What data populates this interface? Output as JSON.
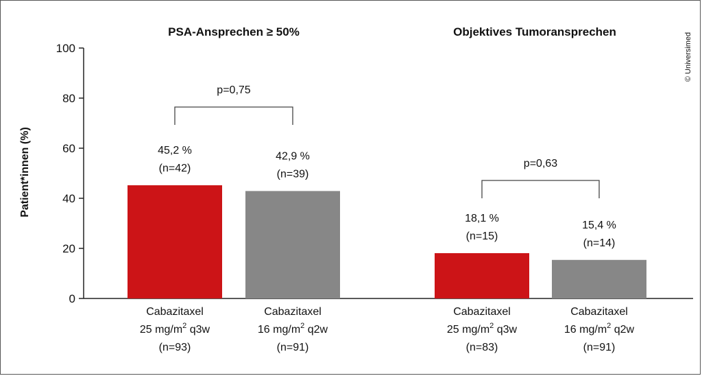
{
  "chart_data": {
    "type": "bar",
    "ylabel": "Patient*innen (%)",
    "ylim": [
      0,
      100
    ],
    "yticks": [
      0,
      20,
      40,
      60,
      80,
      100
    ],
    "grid": false,
    "copyright": "© Universimed",
    "panels": [
      {
        "title": "PSA-Ansprechen ≥ 50%",
        "p_value": "p=0,75",
        "bars": [
          {
            "value": 45.2,
            "color": "#cc1417",
            "value_label": "45,2 %",
            "n_label": "(n=42)",
            "category": {
              "line1": "Cabazitaxel",
              "line2": "25 mg/m",
              "sup": "2",
              "line2_suffix": " q3w",
              "line3": "(n=93)"
            }
          },
          {
            "value": 42.9,
            "color": "#878787",
            "value_label": "42,9 %",
            "n_label": "(n=39)",
            "category": {
              "line1": "Cabazitaxel",
              "line2": "16 mg/m",
              "sup": "2",
              "line2_suffix": " q2w",
              "line3": "(n=91)"
            }
          }
        ]
      },
      {
        "title": "Objektives Tumoransprechen",
        "p_value": "p=0,63",
        "bars": [
          {
            "value": 18.1,
            "color": "#cc1417",
            "value_label": "18,1 %",
            "n_label": "(n=15)",
            "category": {
              "line1": "Cabazitaxel",
              "line2": "25 mg/m",
              "sup": "2",
              "line2_suffix": " q3w",
              "line3": "(n=83)"
            }
          },
          {
            "value": 15.4,
            "color": "#878787",
            "value_label": "15,4 %",
            "n_label": "(n=14)",
            "category": {
              "line1": "Cabazitaxel",
              "line2": "16 mg/m",
              "sup": "2",
              "line2_suffix": " q2w",
              "line3": "(n=91)"
            }
          }
        ]
      }
    ]
  }
}
